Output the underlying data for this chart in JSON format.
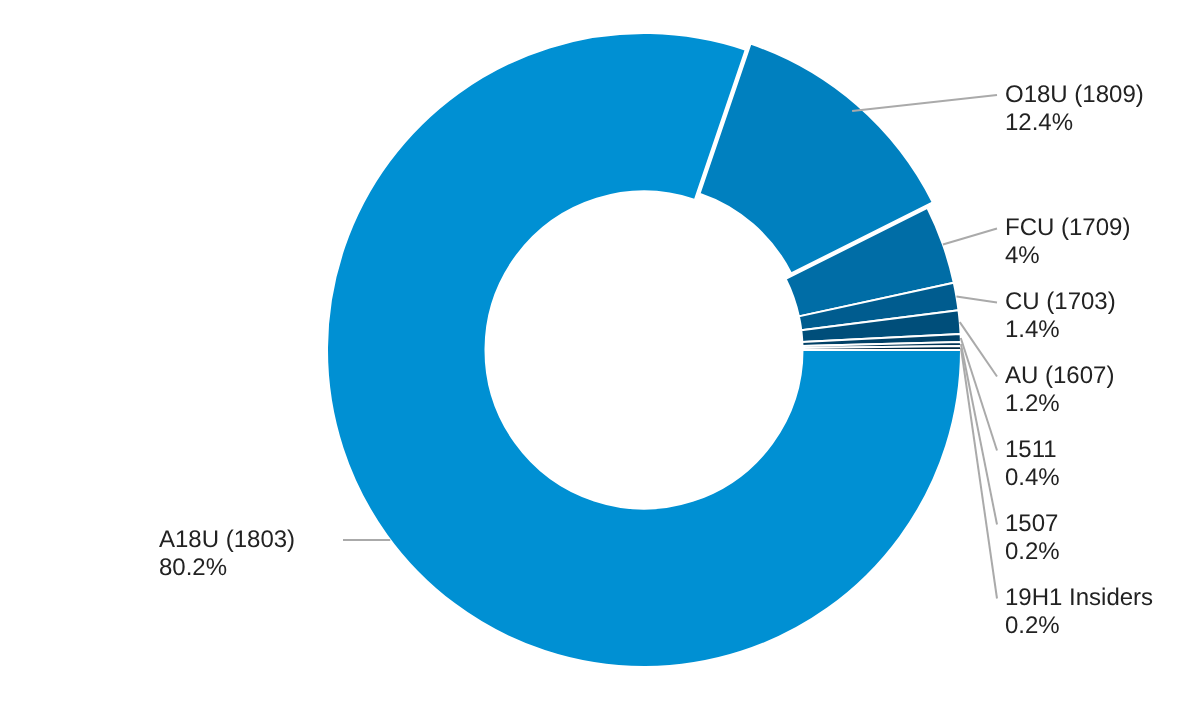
{
  "chart_data": {
    "type": "donut",
    "categories": [
      "A18U (1803)",
      "O18U (1809)",
      "FCU (1709)",
      "CU (1703)",
      "AU (1607)",
      "1511",
      "1507",
      "19H1 Insiders"
    ],
    "values": [
      80.2,
      12.4,
      4,
      1.4,
      1.2,
      0.4,
      0.2,
      0.2
    ],
    "value_labels": [
      "80.2%",
      "12.4%",
      "4%",
      "1.4%",
      "1.2%",
      "0.4%",
      "0.2%",
      "0.2%"
    ],
    "colors": [
      "#0090d3",
      "#0080bf",
      "#006da6",
      "#005c8f",
      "#004e7a",
      "#004066",
      "#003455",
      "#002a45"
    ],
    "legend": false
  }
}
